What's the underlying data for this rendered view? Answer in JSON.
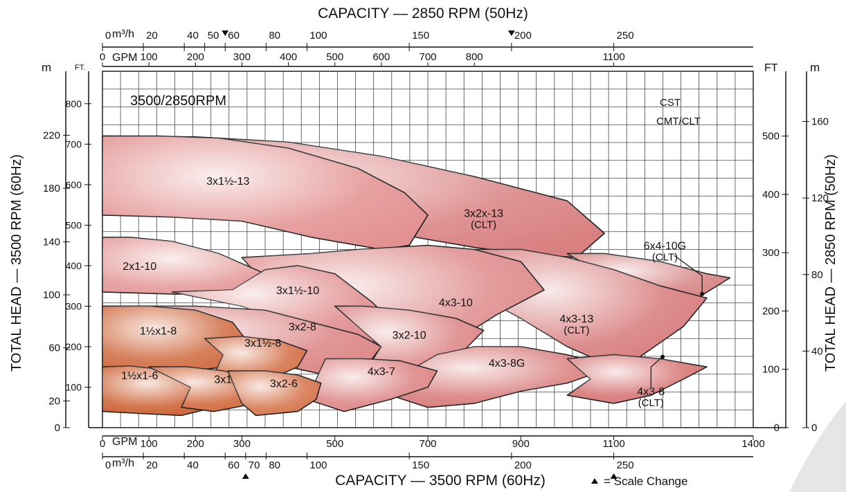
{
  "chart_data": {
    "type": "area",
    "title": "CAPACITY — 2850 RPM (50Hz)",
    "bottom_title": "CAPACITY — 3500 RPM (60Hz)",
    "corner_label": "3500/2850RPM",
    "series_label_line1": "CST",
    "series_label_line2": "CMT/CLT",
    "scale_change_note": "= Scale Change",
    "left_title": "TOTAL HEAD — 3500 RPM (60Hz)",
    "right_title": "TOTAL HEAD — 2850 RPM (50Hz)",
    "axes": {
      "top_m3h_unit": "m³/h",
      "top_gpm_unit": "GPM",
      "bottom_gpm_unit": "GPM",
      "bottom_m3h_unit": "m³/h",
      "left_m_unit": "m",
      "left_ft_unit": "FT.",
      "right_ft_unit": "FT",
      "right_m_unit": "m",
      "top_m3h_ticks": [
        {
          "label": "0",
          "gpm": 0
        },
        {
          "label": "20",
          "gpm": 88
        },
        {
          "label": "40",
          "gpm": 176
        },
        {
          "label": "50",
          "gpm": 220
        },
        {
          "label": "60",
          "gpm": 264,
          "scale_change": true
        },
        {
          "label": "80",
          "gpm": 352
        },
        {
          "label": "100",
          "gpm": 440
        },
        {
          "label": "150",
          "gpm": 660
        },
        {
          "label": "200",
          "gpm": 880,
          "scale_change": true
        },
        {
          "label": "250",
          "gpm": 1100
        }
      ],
      "top_gpm_ticks": [
        {
          "label": "0",
          "gpm": 0
        },
        {
          "label": "100",
          "gpm": 100
        },
        {
          "label": "200",
          "gpm": 200
        },
        {
          "label": "300",
          "gpm": 300
        },
        {
          "label": "400",
          "gpm": 400
        },
        {
          "label": "500",
          "gpm": 500
        },
        {
          "label": "600",
          "gpm": 600
        },
        {
          "label": "700",
          "gpm": 700
        },
        {
          "label": "800",
          "gpm": 800
        },
        {
          "label": "1100",
          "gpm": 1100
        }
      ],
      "bottom_gpm_ticks": [
        {
          "label": "0",
          "gpm": 0
        },
        {
          "label": "100",
          "gpm": 100
        },
        {
          "label": "200",
          "gpm": 200
        },
        {
          "label": "300",
          "gpm": 300
        },
        {
          "label": "500",
          "gpm": 500
        },
        {
          "label": "700",
          "gpm": 700
        },
        {
          "label": "900",
          "gpm": 900
        },
        {
          "label": "1100",
          "gpm": 1100
        },
        {
          "label": "1400",
          "gpm": 1400
        }
      ],
      "bottom_m3h_ticks": [
        {
          "label": "0",
          "gpm": 0
        },
        {
          "label": "20",
          "gpm": 88
        },
        {
          "label": "40",
          "gpm": 176
        },
        {
          "label": "60",
          "gpm": 264
        },
        {
          "label": "70",
          "gpm": 308,
          "scale_change": true
        },
        {
          "label": "80",
          "gpm": 352
        },
        {
          "label": "100",
          "gpm": 440
        },
        {
          "label": "150",
          "gpm": 660
        },
        {
          "label": "200",
          "gpm": 880
        },
        {
          "label": "250",
          "gpm": 1100,
          "scale_change": true
        }
      ],
      "left_m_ticks": [
        {
          "label": "0",
          "ft": 0
        },
        {
          "label": "20",
          "ft": 66
        },
        {
          "label": "60",
          "ft": 197
        },
        {
          "label": "100",
          "ft": 328
        },
        {
          "label": "140",
          "ft": 459
        },
        {
          "label": "180",
          "ft": 591
        },
        {
          "label": "220",
          "ft": 722
        }
      ],
      "left_ft_ticks": [
        {
          "label": "100",
          "ft": 100
        },
        {
          "label": "200",
          "ft": 200
        },
        {
          "label": "300",
          "ft": 300
        },
        {
          "label": "400",
          "ft": 400
        },
        {
          "label": "500",
          "ft": 500
        },
        {
          "label": "600",
          "ft": 600
        },
        {
          "label": "700",
          "ft": 700
        },
        {
          "label": "800",
          "ft": 800
        }
      ],
      "right_ft_ticks": [
        {
          "label": "0",
          "ft60": 0
        },
        {
          "label": "100",
          "ft60": 144
        },
        {
          "label": "200",
          "ft60": 288
        },
        {
          "label": "300",
          "ft60": 432
        },
        {
          "label": "400",
          "ft60": 576
        },
        {
          "label": "500",
          "ft60": 720
        }
      ],
      "right_m_ticks": [
        {
          "label": "0",
          "ft60": 0
        },
        {
          "label": "40",
          "ft60": 189
        },
        {
          "label": "80",
          "ft60": 378
        },
        {
          "label": "120",
          "ft60": 567
        },
        {
          "label": "160",
          "ft60": 756
        }
      ]
    },
    "x_range_gpm": [
      0,
      1400
    ],
    "y_range_ft": [
      0,
      880
    ],
    "grid": true,
    "pump_regions": [
      {
        "label": "3x2x-13",
        "sublabel": "(CLT)",
        "color": "#d98080",
        "label_at": [
          820,
          520
        ],
        "outline": [
          [
            0,
            720
          ],
          [
            200,
            718
          ],
          [
            400,
            705
          ],
          [
            600,
            670
          ],
          [
            800,
            620
          ],
          [
            1000,
            560
          ],
          [
            1080,
            480
          ],
          [
            1020,
            420
          ],
          [
            900,
            430
          ],
          [
            800,
            445
          ],
          [
            600,
            485
          ],
          [
            450,
            505
          ],
          [
            300,
            520
          ],
          [
            120,
            525
          ],
          [
            0,
            525
          ]
        ]
      },
      {
        "label": "3x1½-13",
        "sublabel": "",
        "color": "#e39090",
        "label_at": [
          270,
          600
        ],
        "outline": [
          [
            0,
            720
          ],
          [
            120,
            720
          ],
          [
            250,
            715
          ],
          [
            400,
            690
          ],
          [
            550,
            640
          ],
          [
            650,
            580
          ],
          [
            700,
            525
          ],
          [
            660,
            450
          ],
          [
            600,
            440
          ],
          [
            450,
            470
          ],
          [
            300,
            510
          ],
          [
            150,
            520
          ],
          [
            0,
            525
          ]
        ]
      },
      {
        "label": "6x4-10G",
        "sublabel": "(CLT)",
        "color": "#d68383",
        "label_at": [
          1210,
          440
        ],
        "outline": [
          [
            1000,
            430
          ],
          [
            1080,
            430
          ],
          [
            1200,
            410
          ],
          [
            1300,
            380
          ],
          [
            1350,
            370
          ],
          [
            1280,
            320
          ],
          [
            1200,
            310
          ],
          [
            1100,
            340
          ],
          [
            1060,
            390
          ]
        ]
      },
      {
        "label": "4x3-13",
        "sublabel": "(CLT)",
        "color": "#d77a7a",
        "label_at": [
          1020,
          260
        ],
        "outline": [
          [
            780,
            440
          ],
          [
            900,
            440
          ],
          [
            1000,
            420
          ],
          [
            1100,
            390
          ],
          [
            1200,
            350
          ],
          [
            1300,
            320
          ],
          [
            1250,
            250
          ],
          [
            1200,
            210
          ],
          [
            1150,
            170
          ],
          [
            1100,
            150
          ],
          [
            1000,
            200
          ],
          [
            900,
            270
          ],
          [
            820,
            320
          ],
          [
            780,
            400
          ]
        ]
      },
      {
        "label": "4x3-10",
        "sublabel": "",
        "color": "#de8a8a",
        "label_at": [
          760,
          300
        ],
        "outline": [
          [
            300,
            420
          ],
          [
            450,
            430
          ],
          [
            550,
            440
          ],
          [
            700,
            450
          ],
          [
            800,
            440
          ],
          [
            900,
            410
          ],
          [
            950,
            340
          ],
          [
            850,
            280
          ],
          [
            780,
            230
          ],
          [
            680,
            180
          ],
          [
            600,
            160
          ],
          [
            520,
            180
          ],
          [
            450,
            240
          ],
          [
            380,
            320
          ]
        ]
      },
      {
        "label": "2x1-10",
        "sublabel": "",
        "color": "#e39595",
        "label_at": [
          80,
          390
        ],
        "outline": [
          [
            0,
            470
          ],
          [
            60,
            470
          ],
          [
            150,
            460
          ],
          [
            250,
            430
          ],
          [
            350,
            380
          ],
          [
            420,
            320
          ],
          [
            300,
            330
          ],
          [
            150,
            330
          ],
          [
            0,
            335
          ]
        ]
      },
      {
        "label": "3x1½-10",
        "sublabel": "",
        "color": "#e08c8c",
        "label_at": [
          420,
          330
        ],
        "outline": [
          [
            150,
            335
          ],
          [
            280,
            340
          ],
          [
            350,
            390
          ],
          [
            420,
            400
          ],
          [
            500,
            380
          ],
          [
            580,
            310
          ],
          [
            640,
            240
          ],
          [
            560,
            200
          ],
          [
            480,
            210
          ],
          [
            420,
            250
          ],
          [
            300,
            300
          ]
        ]
      },
      {
        "label": "3x2-8",
        "sublabel": "",
        "color": "#dc8585",
        "label_at": [
          430,
          240
        ],
        "outline": [
          [
            0,
            300
          ],
          [
            200,
            300
          ],
          [
            350,
            290
          ],
          [
            450,
            260
          ],
          [
            550,
            230
          ],
          [
            600,
            200
          ],
          [
            560,
            140
          ],
          [
            480,
            130
          ],
          [
            400,
            150
          ],
          [
            300,
            200
          ],
          [
            150,
            250
          ],
          [
            0,
            270
          ]
        ]
      },
      {
        "label": "3x2-10",
        "sublabel": "",
        "color": "#dc8484",
        "label_at": [
          660,
          220
        ],
        "outline": [
          [
            500,
            300
          ],
          [
            560,
            300
          ],
          [
            660,
            290
          ],
          [
            760,
            270
          ],
          [
            820,
            240
          ],
          [
            760,
            170
          ],
          [
            700,
            140
          ],
          [
            620,
            120
          ],
          [
            560,
            130
          ],
          [
            600,
            200
          ],
          [
            560,
            240
          ]
        ]
      },
      {
        "label": "4x3-8G",
        "sublabel": "",
        "color": "#d87979",
        "label_at": [
          870,
          150
        ],
        "outline": [
          [
            720,
            180
          ],
          [
            800,
            200
          ],
          [
            900,
            200
          ],
          [
            1000,
            180
          ],
          [
            1100,
            150
          ],
          [
            1000,
            110
          ],
          [
            900,
            90
          ],
          [
            800,
            60
          ],
          [
            700,
            50
          ],
          [
            620,
            80
          ],
          [
            660,
            140
          ]
        ]
      },
      {
        "label": "4x3-8",
        "sublabel": "(CLT)",
        "color": "#d67272",
        "label_at": [
          1180,
          80
        ],
        "outline": [
          [
            1000,
            170
          ],
          [
            1100,
            180
          ],
          [
            1200,
            170
          ],
          [
            1300,
            150
          ],
          [
            1250,
            120
          ],
          [
            1180,
            80
          ],
          [
            1100,
            60
          ],
          [
            1000,
            80
          ],
          [
            1050,
            120
          ]
        ]
      },
      {
        "label": "4x3-7",
        "sublabel": "",
        "color": "#dc8282",
        "label_at": [
          600,
          130
        ],
        "outline": [
          [
            480,
            170
          ],
          [
            560,
            170
          ],
          [
            640,
            165
          ],
          [
            720,
            140
          ],
          [
            700,
            100
          ],
          [
            620,
            70
          ],
          [
            520,
            40
          ],
          [
            440,
            70
          ],
          [
            460,
            120
          ]
        ]
      },
      {
        "label": "1½x1-8",
        "sublabel": "",
        "color": "#cf6a40",
        "label_at": [
          120,
          230
        ],
        "outline": [
          [
            0,
            300
          ],
          [
            100,
            300
          ],
          [
            200,
            290
          ],
          [
            280,
            260
          ],
          [
            320,
            200
          ],
          [
            270,
            150
          ],
          [
            180,
            140
          ],
          [
            100,
            140
          ],
          [
            0,
            150
          ]
        ]
      },
      {
        "label": "3x1½-8",
        "sublabel": "",
        "color": "#d26e45",
        "label_at": [
          345,
          200
        ],
        "outline": [
          [
            220,
            220
          ],
          [
            300,
            225
          ],
          [
            380,
            215
          ],
          [
            440,
            190
          ],
          [
            420,
            150
          ],
          [
            360,
            120
          ],
          [
            300,
            110
          ],
          [
            240,
            130
          ],
          [
            260,
            180
          ]
        ]
      },
      {
        "label": "1½x1-6",
        "sublabel": "",
        "color": "#cc5e2f",
        "label_at": [
          80,
          120
        ],
        "outline": [
          [
            0,
            150
          ],
          [
            60,
            152
          ],
          [
            150,
            140
          ],
          [
            230,
            120
          ],
          [
            280,
            90
          ],
          [
            240,
            50
          ],
          [
            170,
            30
          ],
          [
            80,
            35
          ],
          [
            0,
            40
          ]
        ]
      },
      {
        "label": "3x1½-6",
        "sublabel": "",
        "color": "#d06538",
        "label_at": [
          280,
          110
        ],
        "outline": [
          [
            100,
            150
          ],
          [
            180,
            150
          ],
          [
            260,
            140
          ],
          [
            340,
            120
          ],
          [
            380,
            90
          ],
          [
            330,
            60
          ],
          [
            240,
            40
          ],
          [
            170,
            50
          ],
          [
            190,
            100
          ]
        ]
      },
      {
        "label": "3x2-6",
        "sublabel": "",
        "color": "#d4734a",
        "label_at": [
          390,
          100
        ],
        "outline": [
          [
            270,
            140
          ],
          [
            350,
            140
          ],
          [
            420,
            130
          ],
          [
            470,
            110
          ],
          [
            460,
            70
          ],
          [
            420,
            40
          ],
          [
            330,
            30
          ],
          [
            300,
            60
          ]
        ]
      }
    ]
  }
}
